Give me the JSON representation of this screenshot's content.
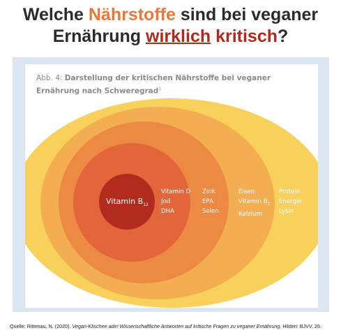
{
  "headline": {
    "line1_a": "Welche ",
    "line1_b": "Nährstoffe",
    "line1_c": " sind bei veganer",
    "line2_a": "Ernährung ",
    "line2_b": "wirklich",
    "line2_c": " ",
    "line2_d": "kritisch",
    "line2_e": "?"
  },
  "figure": {
    "caption_prefix": "Abb. 4: ",
    "caption_text": "Darstellung der kritischen Nährstoffe bei veganer Ernährung nach Schweregrad",
    "caption_sup": "1"
  },
  "rings": [
    {
      "level": 1,
      "color": "#b32a1f",
      "items": [
        "Vitamin B12"
      ]
    },
    {
      "level": 2,
      "color": "#e2663a",
      "items": [
        "Vitamin D",
        "Jod",
        "DHA"
      ]
    },
    {
      "level": 3,
      "color": "#ec8a44",
      "items": [
        "Zink",
        "EPA",
        "Selen"
      ]
    },
    {
      "level": 4,
      "color": "#f4ae52",
      "items": [
        "Eisen",
        "Vitamin B2",
        "Kalzium"
      ]
    },
    {
      "level": 5,
      "color": "#f8d15c",
      "items": [
        "Protein",
        "Energie",
        "Lysin"
      ]
    }
  ],
  "labels": {
    "center_main": "Vitamin B",
    "center_sub": "12",
    "ring2": [
      "Vitamin D",
      "Jod",
      "DHA"
    ],
    "ring3": [
      "Zink",
      "EPA",
      "Selen"
    ],
    "ring4_a": "Eisen",
    "ring4_b_main": "Vitamin B",
    "ring4_b_sub": "2",
    "ring4_c": "Kalzium",
    "ring5": [
      "Protein",
      "Energie",
      "Lysin"
    ]
  },
  "source": {
    "prefix": "Quelle: Rittenau, N. (2020). ",
    "title": "Vegan-Klischee ade! Wissenschaftliche Antworten auf kritische Fragen zu veganer Ernährung.",
    "suffix": " Hilden: BJVV, 26."
  }
}
